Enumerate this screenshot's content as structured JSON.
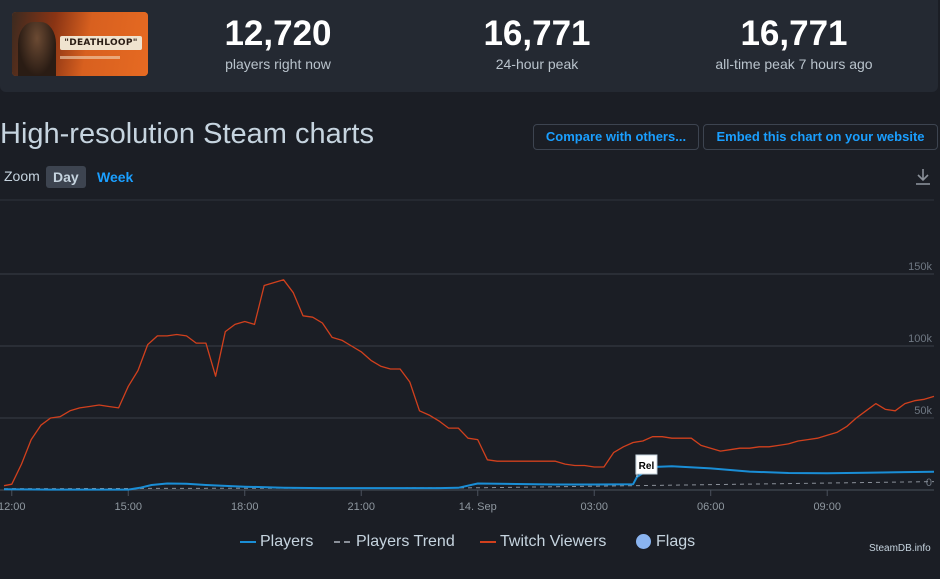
{
  "game": {
    "title_logo": "\"DEATHLOOP\""
  },
  "stats": [
    {
      "value": "12,720",
      "label": "players right now"
    },
    {
      "value": "16,771",
      "label": "24-hour peak"
    },
    {
      "value": "16,771",
      "label": "all-time peak 7 hours ago"
    }
  ],
  "page_title": "High-resolution Steam charts",
  "buttons": {
    "compare": "Compare with others...",
    "embed": "Embed this chart on your website"
  },
  "zoom": {
    "label": "Zoom",
    "day": "Day",
    "week": "Week"
  },
  "credit": "SteamDB.info",
  "colors": {
    "players": "#1a8ed6",
    "trend": "#8a9099",
    "twitch": "#d1401d",
    "flags": "#8ab4f0"
  },
  "chart_data": {
    "type": "line",
    "x_tick_labels": [
      "12:00",
      "15:00",
      "18:00",
      "21:00",
      "14. Sep",
      "03:00",
      "06:00",
      "09:00"
    ],
    "x_tick_hours": [
      0,
      3,
      6,
      9,
      12,
      15,
      18,
      21
    ],
    "x_range_hours": [
      -0.2,
      23.75
    ],
    "y_tick_labels": [
      "0",
      "50k",
      "100k",
      "150k"
    ],
    "y_tick_values": [
      0,
      50000,
      100000,
      150000
    ],
    "ylim": [
      0,
      150000
    ],
    "grid": true,
    "legend_position": "bottom-center",
    "series": [
      {
        "name": "Players",
        "x": [
          -0.2,
          1,
          2,
          3,
          3.3,
          3.6,
          4,
          4.5,
          5,
          6,
          7,
          8,
          9,
          10,
          11,
          11.5,
          12,
          13,
          14,
          15,
          15.5,
          16,
          16.1,
          16.5,
          17,
          18,
          19,
          20,
          21,
          22,
          23,
          23.75
        ],
        "y": [
          500,
          300,
          250,
          250,
          1500,
          3500,
          4500,
          4300,
          3500,
          2300,
          1600,
          1300,
          1300,
          1300,
          1300,
          1500,
          4500,
          4200,
          3800,
          3800,
          3900,
          4000,
          9000,
          16000,
          16500,
          15000,
          12800,
          11800,
          11600,
          12000,
          12400,
          12720
        ]
      },
      {
        "name": "Players Trend",
        "x": [
          -0.2,
          12,
          23.75
        ],
        "y": [
          900,
          1500,
          5800
        ]
      },
      {
        "name": "Twitch Viewers",
        "x": [
          -0.2,
          0,
          0.25,
          0.5,
          0.75,
          1,
          1.25,
          1.5,
          1.75,
          2,
          2.25,
          2.5,
          2.75,
          3,
          3.25,
          3.5,
          3.75,
          4,
          4.25,
          4.5,
          4.75,
          5,
          5.25,
          5.5,
          5.75,
          6,
          6.25,
          6.5,
          6.75,
          7,
          7.25,
          7.5,
          7.75,
          8,
          8.25,
          8.5,
          8.75,
          9,
          9.25,
          9.5,
          9.75,
          10,
          10.25,
          10.5,
          10.75,
          11,
          11.25,
          11.5,
          11.75,
          12,
          12.25,
          12.5,
          12.75,
          13,
          13.25,
          13.5,
          13.75,
          14,
          14.25,
          14.5,
          14.75,
          15,
          15.25,
          15.5,
          15.75,
          16,
          16.25,
          16.5,
          16.75,
          17,
          17.25,
          17.5,
          17.75,
          18,
          18.25,
          18.5,
          18.75,
          19,
          19.25,
          19.5,
          19.75,
          20,
          20.25,
          20.5,
          20.75,
          21,
          21.25,
          21.5,
          21.75,
          22,
          22.25,
          22.5,
          22.75,
          23,
          23.25,
          23.5,
          23.75
        ],
        "y": [
          3000,
          4000,
          18000,
          35000,
          45000,
          50000,
          51000,
          55000,
          57000,
          58000,
          59000,
          58000,
          57000,
          72000,
          83000,
          101000,
          107000,
          107000,
          108000,
          107000,
          102000,
          102000,
          79000,
          110000,
          115000,
          117000,
          115000,
          142000,
          144000,
          146000,
          137000,
          121000,
          120000,
          116000,
          106000,
          104000,
          100000,
          96000,
          90000,
          86000,
          84000,
          84000,
          75000,
          55000,
          52000,
          48000,
          43000,
          43000,
          36000,
          35000,
          21000,
          20000,
          20000,
          20000,
          20000,
          20000,
          20000,
          20000,
          18000,
          17000,
          17000,
          16000,
          16000,
          26000,
          30000,
          33000,
          34000,
          37000,
          37000,
          36000,
          36000,
          36000,
          31000,
          29000,
          27000,
          28000,
          29000,
          29000,
          30000,
          30000,
          31000,
          32000,
          34000,
          35000,
          36000,
          38000,
          40000,
          44000,
          50000,
          55000,
          60000,
          56000,
          55000,
          60000,
          62000,
          63000,
          65000
        ]
      }
    ],
    "flags": [
      {
        "x": 16.1,
        "label": "Rel"
      }
    ],
    "legend": [
      "Players",
      "Players Trend",
      "Twitch Viewers",
      "Flags"
    ]
  }
}
